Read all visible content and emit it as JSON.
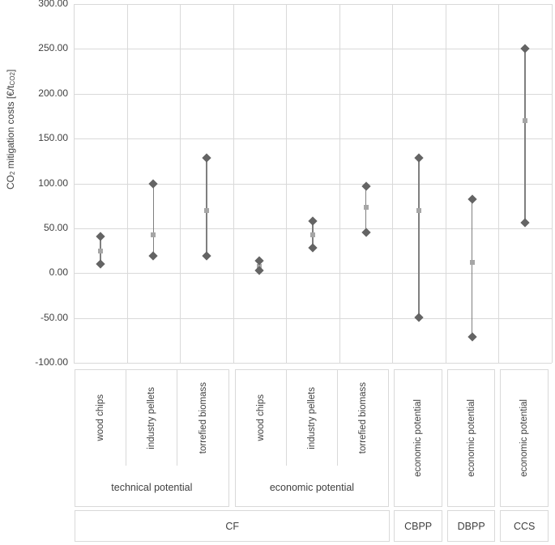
{
  "axis_y": {
    "title_parts": {
      "p1": "CO",
      "sub1": "2",
      "p2": " mitigation costs [€/t",
      "sub2": "CO2",
      "p3": "]"
    },
    "tick_labels": [
      "300.00",
      "250.00",
      "200.00",
      "150.00",
      "100.00",
      "50.00",
      "0.00",
      "-50.00",
      "-100.00"
    ]
  },
  "chart_data": {
    "type": "scatter",
    "subtype": "high-low-range",
    "title": "",
    "xlabel": "",
    "ylabel": "CO2 mitigation costs [€/tCO2]",
    "ylim": [
      -100,
      300
    ],
    "ytick_step": 50,
    "grid": true,
    "legend": "none",
    "categories": [
      {
        "item": "wood chips",
        "subgroup": "technical potential",
        "group": "CF"
      },
      {
        "item": "industry pellets",
        "subgroup": "technical potential",
        "group": "CF"
      },
      {
        "item": "torrefied biomass",
        "subgroup": "technical potential",
        "group": "CF"
      },
      {
        "item": "wood chips",
        "subgroup": "economic potential",
        "group": "CF"
      },
      {
        "item": "industry pellets",
        "subgroup": "economic potential",
        "group": "CF"
      },
      {
        "item": "torrefied biomass",
        "subgroup": "economic potential",
        "group": "CF"
      },
      {
        "item": "economic potential",
        "subgroup": "",
        "group": "CBPP"
      },
      {
        "item": "economic potential",
        "subgroup": "",
        "group": "DBPP"
      },
      {
        "item": "economic potential",
        "subgroup": "",
        "group": "CCS"
      }
    ],
    "points": [
      {
        "min": 10,
        "mid": 25,
        "max": 41
      },
      {
        "min": 19,
        "mid": 43,
        "max": 100
      },
      {
        "min": 19,
        "mid": 70,
        "max": 128
      },
      {
        "min": 3,
        "mid": 7,
        "max": 14
      },
      {
        "min": 28,
        "mid": 43,
        "max": 58
      },
      {
        "min": 45,
        "mid": 73,
        "max": 97
      },
      {
        "min": -49,
        "mid": 70,
        "max": 128
      },
      {
        "min": -71,
        "mid": 12,
        "max": 82
      },
      {
        "min": 56,
        "mid": 170,
        "max": 250
      }
    ],
    "marker_legend": {
      "max": "diamond",
      "mid": "square",
      "min": "diamond"
    }
  },
  "category_axis": {
    "item_labels": [
      "wood chips",
      "industry pellets",
      "torrefied biomass",
      "wood chips",
      "industry pellets",
      "torrefied biomass"
    ],
    "tall_labels": [
      "economic potential",
      "economic potential",
      "economic potential"
    ],
    "subgroup_labels": [
      "technical potential",
      "economic potential"
    ],
    "group_labels": [
      "CF",
      "CBPP",
      "DBPP",
      "CCS"
    ]
  },
  "colors": {
    "gridline": "#d9d9d9",
    "box_border": "#d9d9d9",
    "range_line": "#7f7f7f",
    "marker_minmax": "#646464",
    "marker_mid": "#a6a6a6",
    "text": "#404040",
    "background": "#ffffff"
  }
}
